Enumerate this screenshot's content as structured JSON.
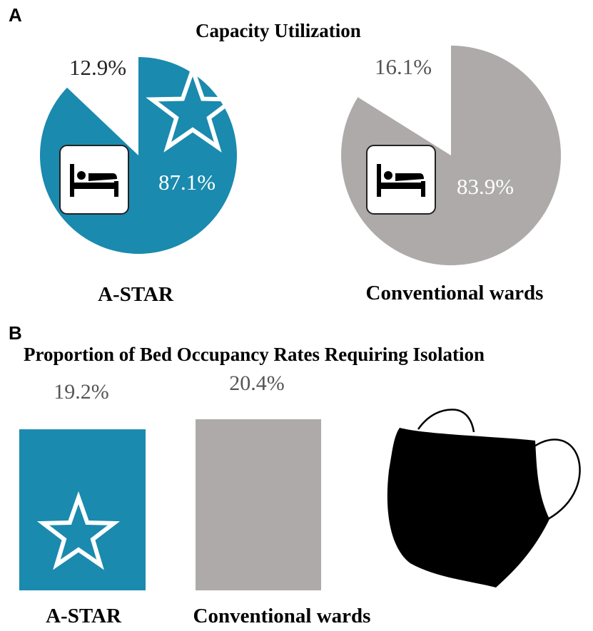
{
  "panels": {
    "a_label": "A",
    "b_label": "B"
  },
  "colors": {
    "astar": "#1a8aae",
    "conventional": "#aeaaaa",
    "label_dark": "#222222",
    "label_grey": "#555555",
    "label_light": "#ffffff"
  },
  "icons": [
    "star-icon",
    "bed-icon",
    "mask-icon"
  ],
  "chart_data": [
    {
      "type": "pie",
      "title": "Capacity Utilization",
      "charts": [
        {
          "name": "A-STAR",
          "slices": [
            {
              "label": "87.1%",
              "value": 87.1,
              "color": "#1a8aae"
            },
            {
              "label": "12.9%",
              "value": 12.9,
              "color": "#ffffff"
            }
          ]
        },
        {
          "name": "Conventional wards",
          "slices": [
            {
              "label": "83.9%",
              "value": 83.9,
              "color": "#aeaaaa"
            },
            {
              "label": "16.1%",
              "value": 16.1,
              "color": "#ffffff"
            }
          ]
        }
      ]
    },
    {
      "type": "bar",
      "title": "Proportion of Bed Occupancy Rates Requiring Isolation",
      "categories": [
        "A-STAR",
        "Conventional wards"
      ],
      "values": [
        19.2,
        20.4
      ],
      "value_labels": [
        "19.2%",
        "20.4%"
      ],
      "colors": [
        "#1a8aae",
        "#aeaaaa"
      ]
    }
  ]
}
